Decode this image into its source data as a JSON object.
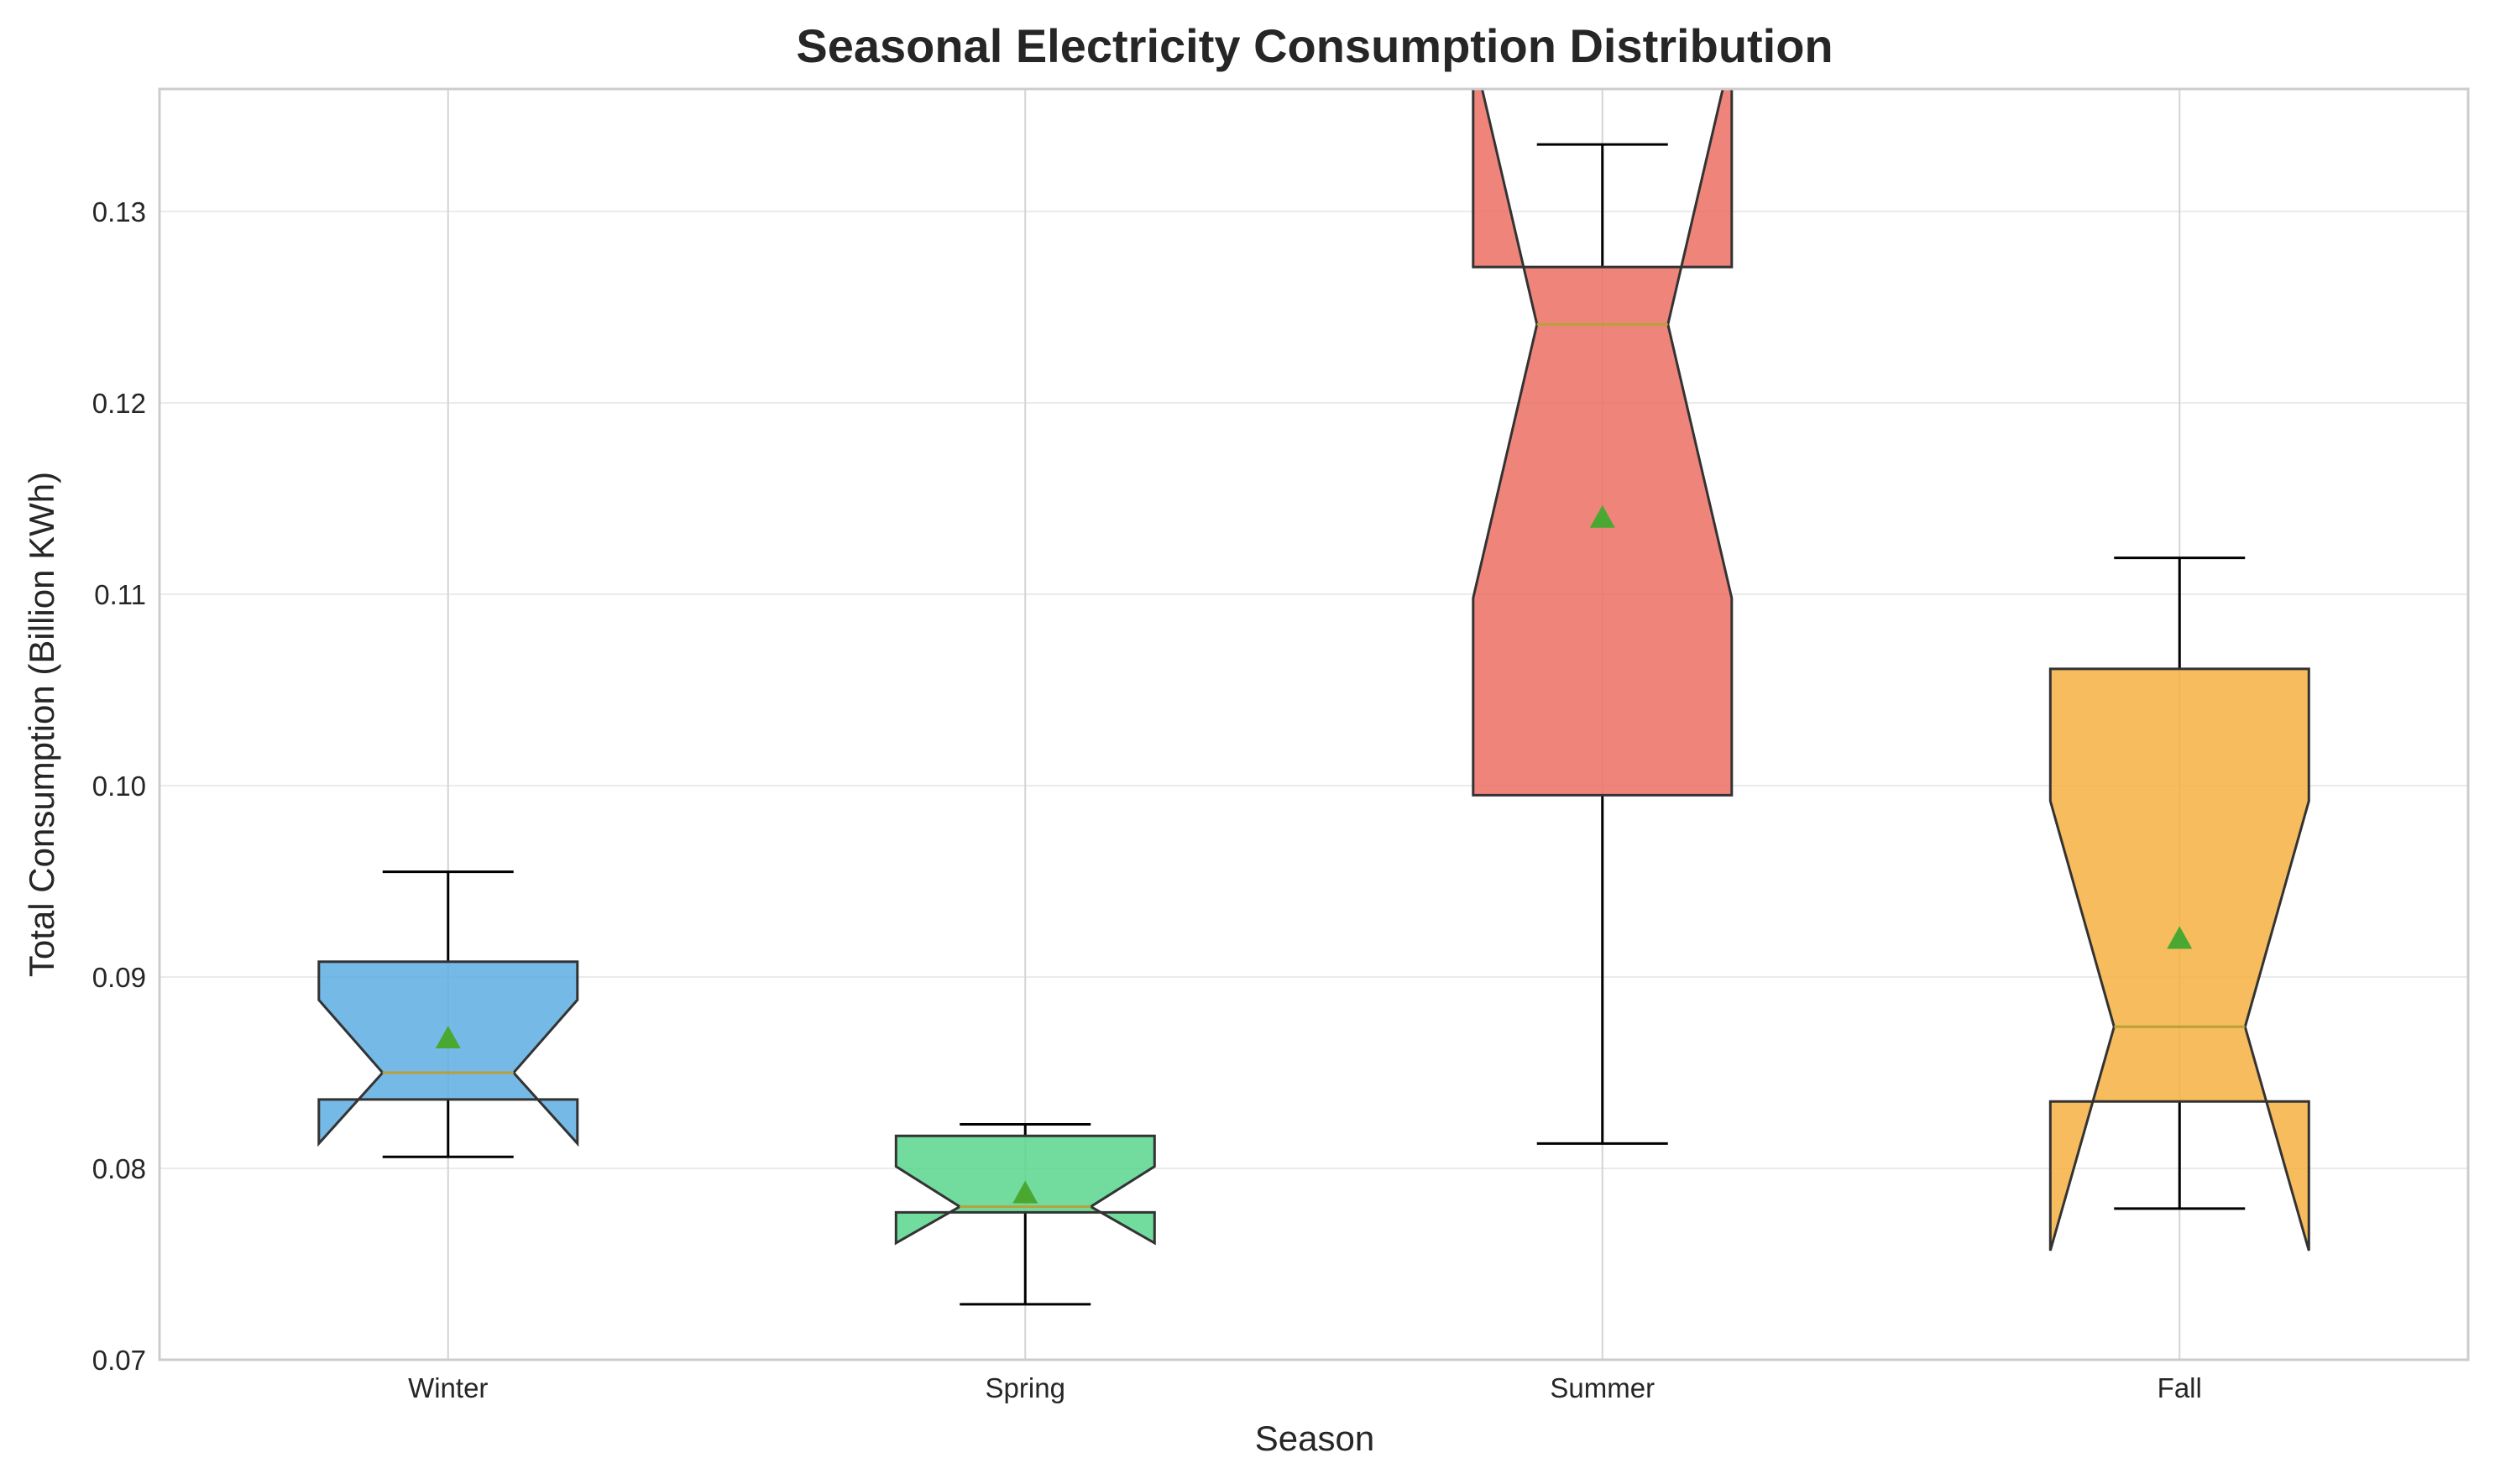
{
  "chart_data": {
    "type": "boxplot",
    "title": "Seasonal Electricity Consumption Distribution",
    "xlabel": "Season",
    "ylabel": "Total Consumption (Billion KWh)",
    "ylim": [
      0.07,
      0.1364
    ],
    "yticks": [
      0.07,
      0.08,
      0.09,
      0.1,
      0.11,
      0.12,
      0.13
    ],
    "ytick_labels": [
      "0.07",
      "0.08",
      "0.09",
      "0.10",
      "0.11",
      "0.12",
      "0.13"
    ],
    "grid": true,
    "notched": true,
    "show_means": true,
    "mean_color": "#4aa832",
    "median_color": "#b8a13a",
    "categories": [
      "Winter",
      "Spring",
      "Summer",
      "Fall"
    ],
    "boxes": [
      {
        "category": "Winter",
        "color": "#5dade2",
        "whisker_low": 0.0806,
        "q1": 0.0836,
        "median": 0.085,
        "q3": 0.0908,
        "whisker_high": 0.0955,
        "notch_low": 0.0813,
        "notch_high": 0.0888,
        "mean": 0.0868
      },
      {
        "category": "Spring",
        "color": "#58d68d",
        "whisker_low": 0.0729,
        "q1": 0.0777,
        "median": 0.078,
        "q3": 0.0817,
        "whisker_high": 0.0823,
        "notch_low": 0.0761,
        "notch_high": 0.0801,
        "mean": 0.0787
      },
      {
        "category": "Summer",
        "color": "#ec7063",
        "whisker_low": 0.0813,
        "q1": 0.0995,
        "median": 0.1241,
        "q3": 0.1271,
        "whisker_high": 0.1335,
        "notch_low": 0.1098,
        "notch_high": 0.1384,
        "mean": 0.114
      },
      {
        "category": "Fall",
        "color": "#f5b041",
        "whisker_low": 0.0779,
        "q1": 0.0835,
        "median": 0.0874,
        "q3": 0.1061,
        "whisker_high": 0.1119,
        "notch_low": 0.0757,
        "notch_high": 0.0992,
        "mean": 0.092
      }
    ]
  }
}
